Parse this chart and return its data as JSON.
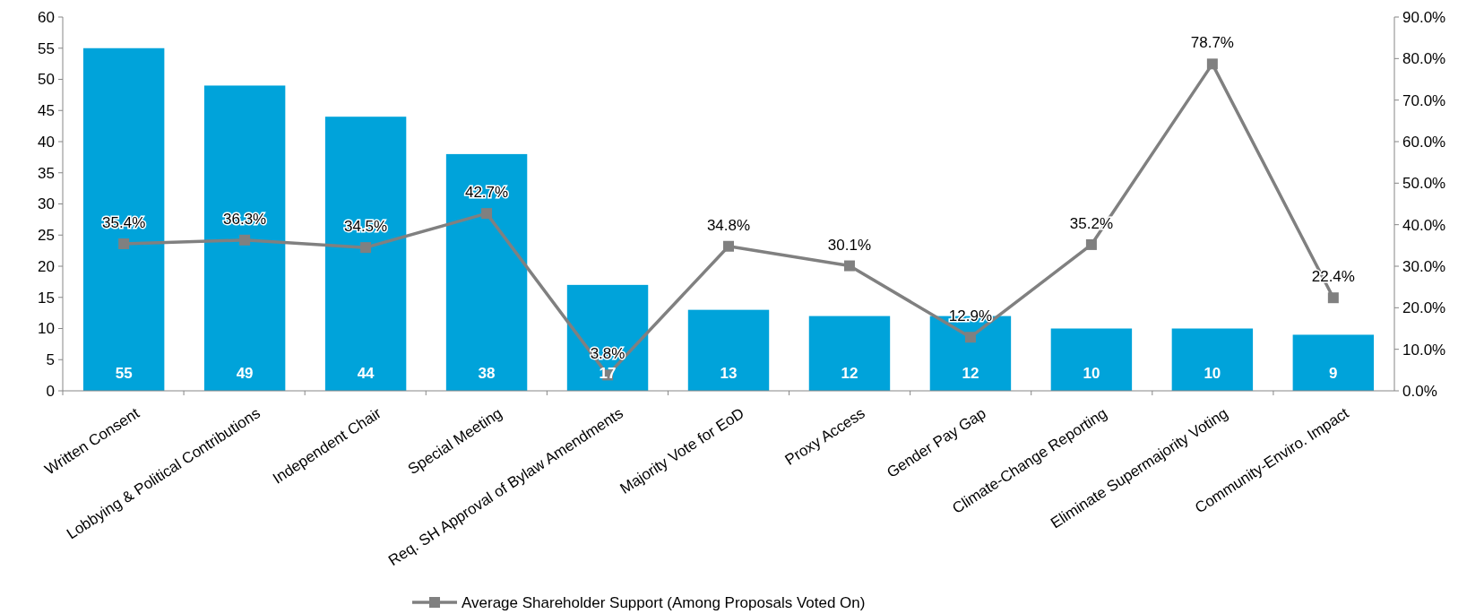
{
  "chart_data": {
    "type": "bar",
    "categories": [
      "Written Consent",
      "Lobbying & Political Contributions",
      "Independent Chair",
      "Special Meeting",
      "Req. SH Approval of Bylaw Amendments",
      "Majority Vote for EoD",
      "Proxy Access",
      "Gender Pay Gap",
      "Climate-Change Reporting",
      "Eliminate Supermajority Voting",
      "Community-Enviro. Impact"
    ],
    "series": [
      {
        "color": "#00a3da",
        "values": [
          55,
          49,
          44,
          38,
          17,
          13,
          12,
          12,
          10,
          10,
          9
        ],
        "value_labels": [
          "55",
          "49",
          "44",
          "38",
          "17",
          "13",
          "12",
          "12",
          "10",
          "10",
          "9"
        ]
      },
      {
        "type": "line",
        "axis": "y2",
        "name": "Average Shareholder Support (Among Proposals Voted On)",
        "color": "#808080",
        "marker": "square",
        "values": [
          35.4,
          36.3,
          34.5,
          42.7,
          3.8,
          34.8,
          30.1,
          12.9,
          35.2,
          78.7,
          22.4
        ],
        "value_labels": [
          "35.4%",
          "36.3%",
          "34.5%",
          "42.7%",
          "3.8%",
          "34.8%",
          "30.1%",
          "12.9%",
          "35.2%",
          "78.7%",
          "22.4%"
        ]
      }
    ],
    "ylim": [
      0,
      60
    ],
    "yticks": [
      0,
      5,
      10,
      15,
      20,
      25,
      30,
      35,
      40,
      45,
      50,
      55,
      60
    ],
    "y2lim": [
      0,
      90
    ],
    "y2ticks": [
      {
        "value": 0,
        "label": "0.0%"
      },
      {
        "value": 10,
        "label": "10.0%"
      },
      {
        "value": 20,
        "label": "20.0%"
      },
      {
        "value": 30,
        "label": "30.0%"
      },
      {
        "value": 40,
        "label": "40.0%"
      },
      {
        "value": 50,
        "label": "50.0%"
      },
      {
        "value": 60,
        "label": "60.0%"
      },
      {
        "value": 70,
        "label": "70.0%"
      },
      {
        "value": 80,
        "label": "80.0%"
      },
      {
        "value": 90,
        "label": "90.0%"
      }
    ],
    "grid": false,
    "legend": "bottom"
  }
}
